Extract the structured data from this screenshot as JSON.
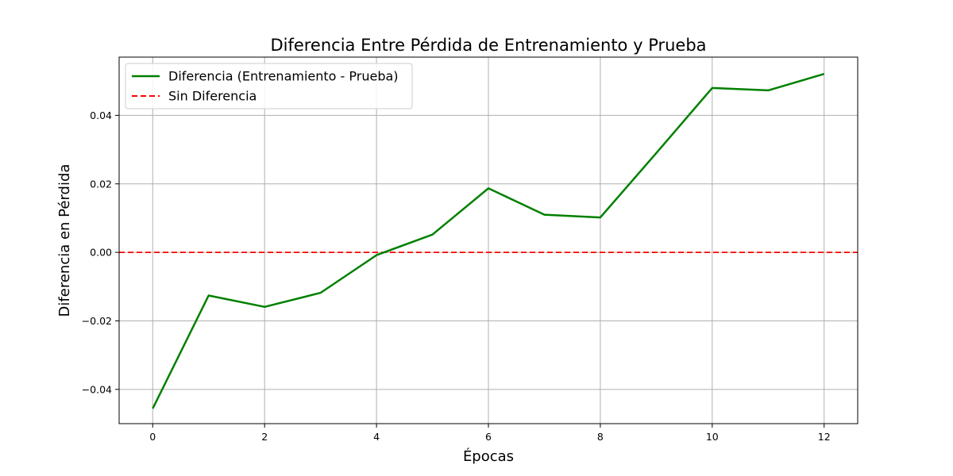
{
  "chart_data": {
    "type": "line",
    "title": "Diferencia Entre Pérdida de Entrenamiento y Prueba",
    "xlabel": "Épocas",
    "ylabel": "Diferencia en Pérdida",
    "xlim": [
      -0.6,
      12.6
    ],
    "ylim": [
      -0.05,
      0.057
    ],
    "x_ticks": [
      0,
      2,
      4,
      6,
      8,
      10,
      12
    ],
    "x_tick_labels": [
      "0",
      "2",
      "4",
      "6",
      "8",
      "10",
      "12"
    ],
    "y_ticks": [
      -0.04,
      -0.02,
      0.0,
      0.02,
      0.04
    ],
    "y_tick_labels": [
      "−0.04",
      "−0.02",
      "0.00",
      "0.02",
      "0.04"
    ],
    "grid": true,
    "legend_position": "top-left",
    "series": [
      {
        "name": "Diferencia (Entrenamiento - Prueba)",
        "style": "solid",
        "color": "#008000",
        "x": [
          0,
          1,
          2,
          3,
          4,
          5,
          6,
          7,
          8,
          9,
          10,
          11,
          12
        ],
        "y": [
          -0.0456,
          -0.0126,
          -0.0159,
          -0.0118,
          -0.0008,
          0.0052,
          0.0187,
          0.011,
          0.0102,
          0.029,
          0.048,
          0.0473,
          0.0521
        ]
      }
    ],
    "reference_lines": [
      {
        "name": "Sin Diferencia",
        "style": "dashed",
        "color": "#ff0000",
        "y": 0.0
      }
    ]
  }
}
